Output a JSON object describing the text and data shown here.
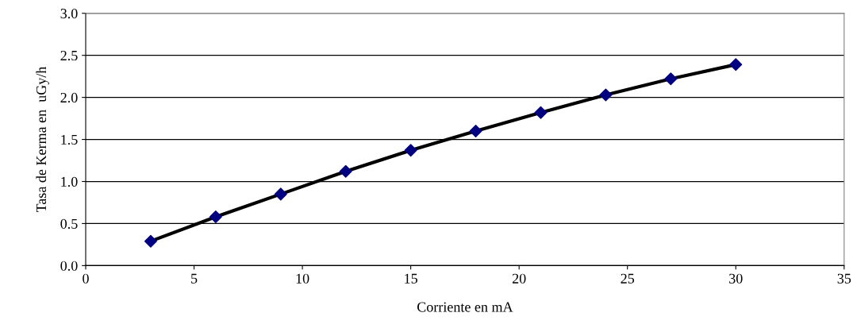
{
  "chart_data": {
    "type": "scatter",
    "xlabel": "Corriente en mA",
    "ylabel": "Tasa de Kerma en  uGy/h",
    "x": [
      3,
      6,
      9,
      12,
      15,
      18,
      21,
      24,
      27,
      30
    ],
    "series": [
      {
        "type": "line",
        "color": "#000000",
        "marker": "none",
        "line_style": "solid",
        "values": [
          0.29,
          0.58,
          0.85,
          1.12,
          1.37,
          1.6,
          1.82,
          2.03,
          2.22,
          2.39
        ]
      },
      {
        "color": "#000080",
        "marker": "diamond",
        "values": [
          0.29,
          0.58,
          0.85,
          1.12,
          1.37,
          1.6,
          1.82,
          2.03,
          2.22,
          2.39
        ]
      }
    ],
    "xlim": [
      0,
      35
    ],
    "xticks": [
      0,
      5,
      10,
      15,
      20,
      25,
      30,
      35
    ],
    "ylim": [
      0,
      3
    ],
    "yticks": [
      {
        "value": 0,
        "label": "0.0"
      },
      {
        "value": 0.5,
        "label": "0.5"
      },
      {
        "value": 1,
        "label": "1.0"
      },
      {
        "value": 1.5,
        "label": "1.5"
      },
      {
        "value": 2,
        "label": "2.0"
      },
      {
        "value": 2.5,
        "label": "2.5"
      },
      {
        "value": 3,
        "label": "3.0"
      }
    ],
    "grid": "y",
    "legend": false
  }
}
